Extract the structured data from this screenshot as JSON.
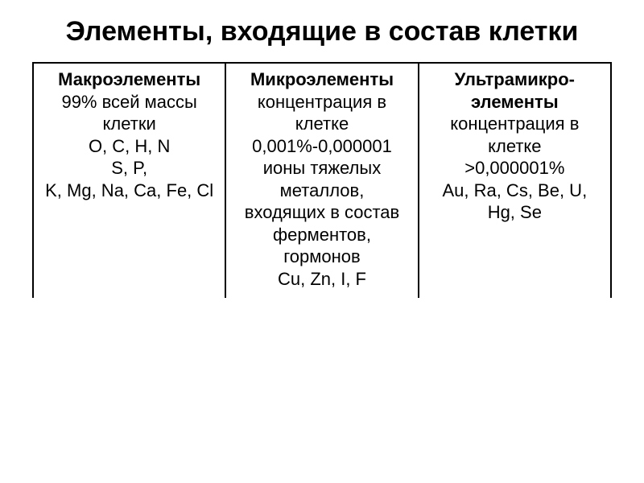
{
  "page": {
    "title": "Элементы, входящие в состав клетки",
    "title_fontsize": 34,
    "title_fontweight": "900",
    "text_color": "#000000",
    "background_color": "#ffffff",
    "border_color": "#000000",
    "body_fontsize": 22
  },
  "table": {
    "columns": [
      {
        "header": "Макроэлементы",
        "lines": [
          "99% всей массы клетки",
          "O, C, H, N",
          "S, P,",
          "K, Mg, Na, Ca, Fe, Cl"
        ]
      },
      {
        "header": "Микроэлементы",
        "lines": [
          "концентрация в клетке",
          "0,001%-0,000001",
          "ионы тяжелых металлов, входящих в состав ферментов, гормонов",
          "Cu, Zn, I, F"
        ]
      },
      {
        "header": "Ультрамикро-элементы",
        "lines": [
          "концентрация в клетке",
          "˃0,000001%",
          "Au, Ra, Cs, Be, U, Hg, Se"
        ]
      }
    ]
  }
}
